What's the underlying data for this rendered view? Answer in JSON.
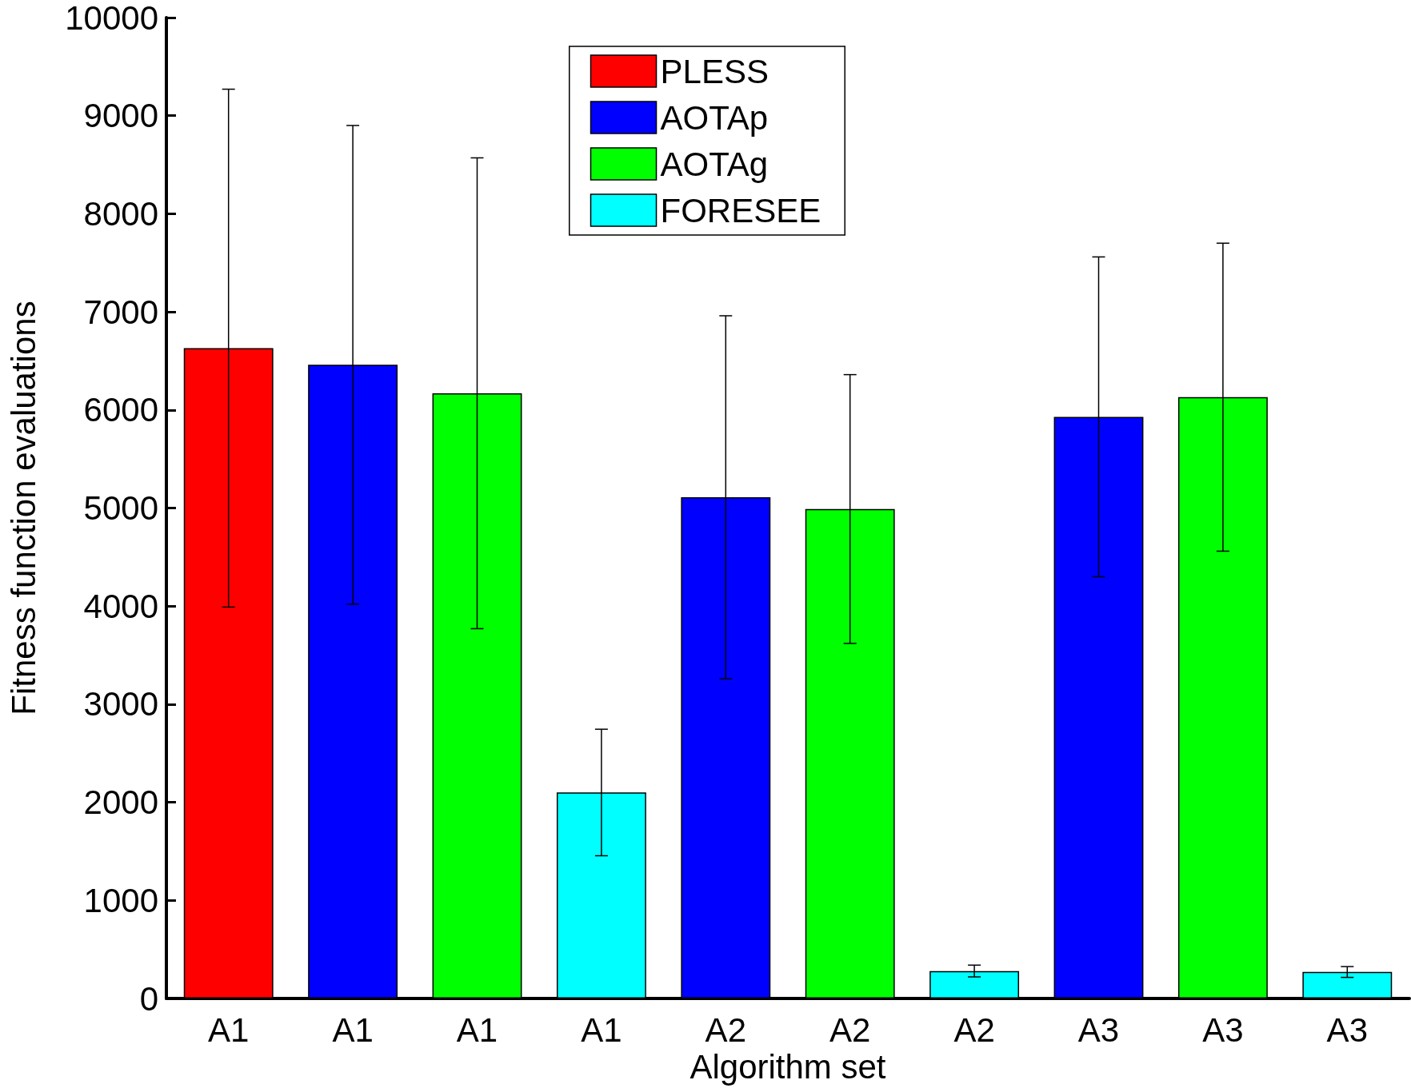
{
  "chart_data": {
    "type": "bar",
    "xlabel": "Algorithm set",
    "ylabel": "Fitness function evaluations",
    "categories": [
      "A1",
      "A1",
      "A1",
      "A1",
      "A2",
      "A2",
      "A2",
      "A3",
      "A3",
      "A3"
    ],
    "series": [
      {
        "name": "PLESS",
        "color": "#ff0000",
        "values": [
          6630,
          null,
          null,
          null,
          null,
          null,
          null,
          null,
          null,
          null
        ],
        "errors": [
          2640,
          null,
          null,
          null,
          null,
          null,
          null,
          null,
          null,
          null
        ]
      },
      {
        "name": "AOTAp",
        "color": "#0000ff",
        "values": [
          null,
          6460,
          null,
          null,
          5110,
          null,
          null,
          5930,
          null,
          null
        ],
        "errors": [
          null,
          2440,
          null,
          null,
          1850,
          null,
          null,
          1630,
          null,
          null
        ]
      },
      {
        "name": "AOTAg",
        "color": "#00ff00",
        "values": [
          null,
          null,
          6170,
          null,
          null,
          4990,
          null,
          null,
          6130,
          null
        ],
        "errors": [
          null,
          null,
          2400,
          null,
          null,
          1370,
          null,
          null,
          1570,
          null
        ]
      },
      {
        "name": "FORESEE",
        "color": "#00ffff",
        "values": [
          null,
          null,
          null,
          2100,
          null,
          null,
          280,
          null,
          null,
          270
        ],
        "errors": [
          null,
          null,
          null,
          645,
          null,
          null,
          60,
          null,
          null,
          55
        ]
      }
    ],
    "ylim": [
      0,
      10000
    ],
    "yticks": [
      0,
      1000,
      2000,
      3000,
      4000,
      5000,
      6000,
      7000,
      8000,
      9000,
      10000
    ],
    "grid": false,
    "legend": "top"
  }
}
